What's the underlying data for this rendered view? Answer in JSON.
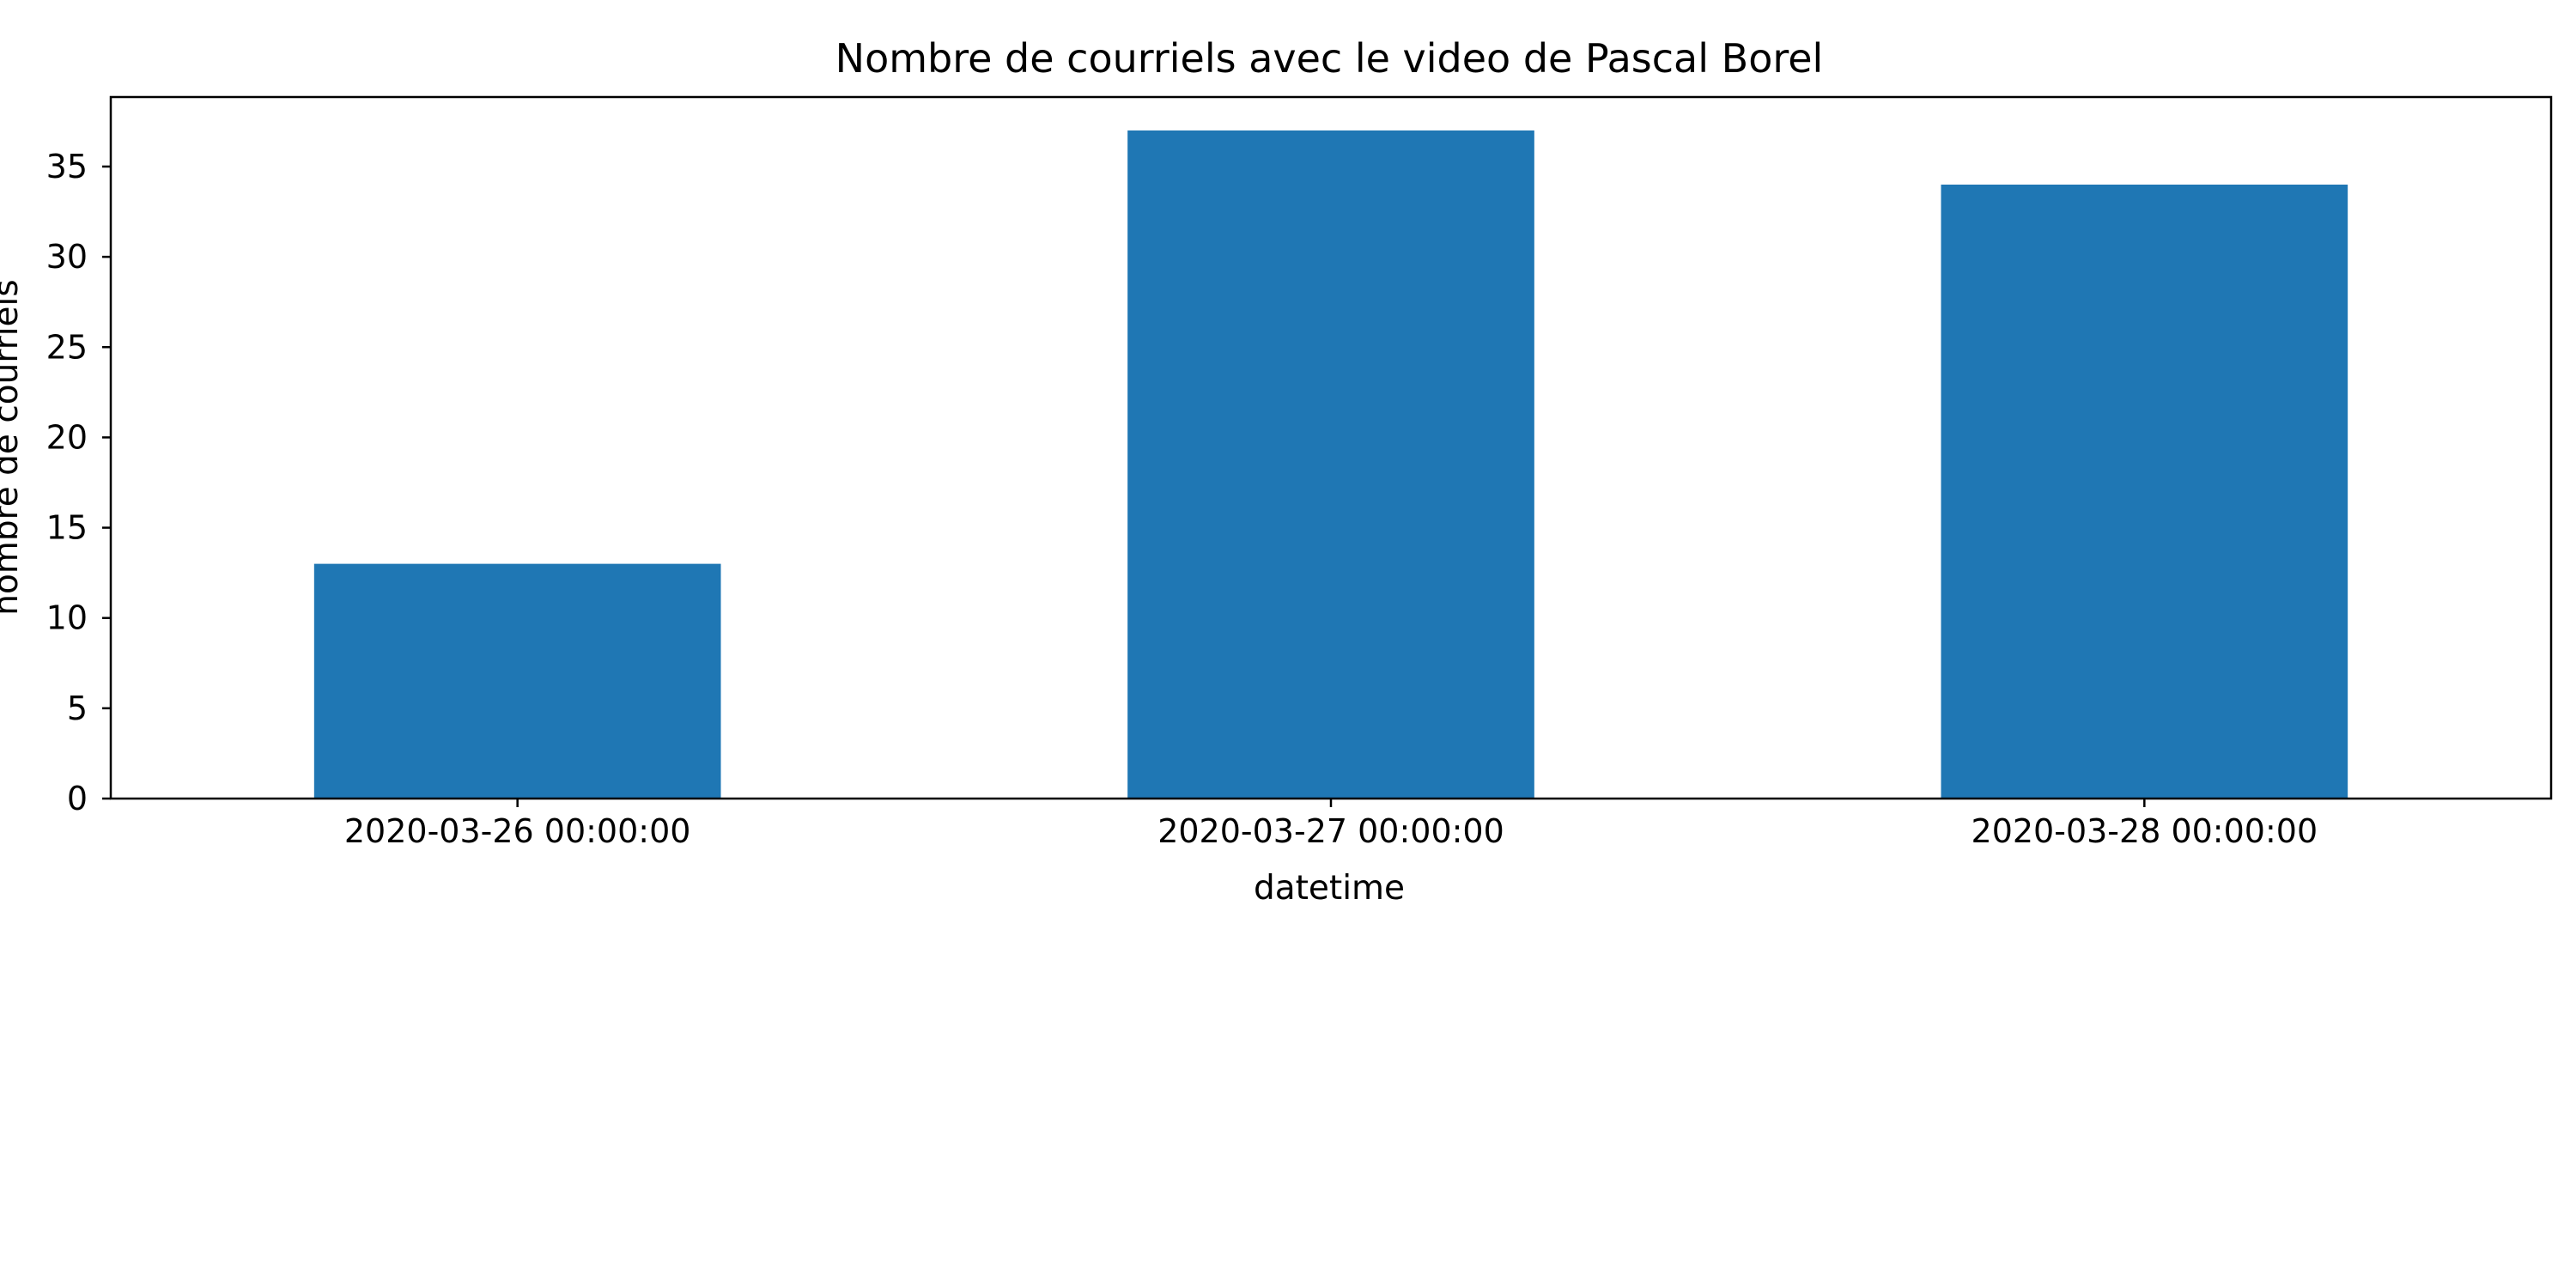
{
  "chart_data": {
    "type": "bar",
    "title": "Nombre de courriels avec le video de Pascal Borel",
    "xlabel": "datetime",
    "ylabel": "nombre de courriels",
    "categories": [
      "2020-03-26 00:00:00",
      "2020-03-27 00:00:00",
      "2020-03-28 00:00:00"
    ],
    "values": [
      13,
      37,
      34
    ],
    "ylim": [
      0,
      38.85
    ],
    "yticks": [
      0,
      5,
      10,
      15,
      20,
      25,
      30,
      35
    ],
    "ytick_labels": [
      "0",
      "5",
      "10",
      "15",
      "20",
      "25",
      "30",
      "35"
    ],
    "bar_color": "#1f77b4",
    "grid": false,
    "legend": "none"
  }
}
